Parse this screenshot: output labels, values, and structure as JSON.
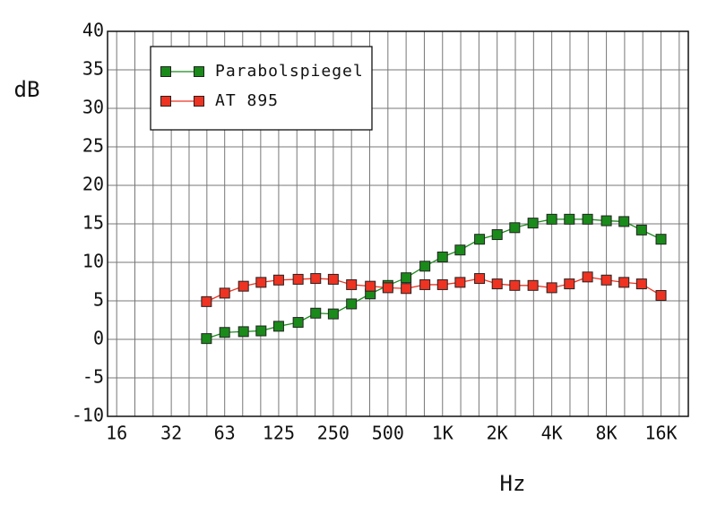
{
  "chart_data": {
    "type": "line",
    "x_label": "Hz",
    "y_label": "dB",
    "x": [
      50,
      63,
      80,
      100,
      125,
      160,
      200,
      250,
      315,
      400,
      500,
      630,
      800,
      1000,
      1250,
      1600,
      2000,
      2500,
      3150,
      4000,
      5000,
      6300,
      8000,
      10000,
      12500,
      16000
    ],
    "series": [
      {
        "name": "Parabolspiegel",
        "color": "#1a8a1a",
        "values": [
          0.1,
          0.9,
          1.0,
          1.1,
          1.7,
          2.2,
          3.4,
          3.3,
          4.6,
          5.9,
          7.0,
          8.0,
          9.5,
          10.7,
          11.6,
          13.0,
          13.6,
          14.5,
          15.1,
          15.6,
          15.6,
          15.6,
          15.4,
          15.3,
          14.2,
          13.0
        ]
      },
      {
        "name": "AT 895",
        "color": "#ee3322",
        "values": [
          4.9,
          6.0,
          6.9,
          7.4,
          7.7,
          7.8,
          7.9,
          7.8,
          7.1,
          6.9,
          6.7,
          6.6,
          7.1,
          7.1,
          7.4,
          7.9,
          7.2,
          7.0,
          7.0,
          6.7,
          7.2,
          8.1,
          7.7,
          7.4,
          7.2,
          5.7
        ]
      }
    ],
    "xscale": "log",
    "xlim": [
      14.25,
      22627
    ],
    "xticks": [
      16,
      32,
      63,
      125,
      250,
      500,
      {
        "value": 1000,
        "label": "1K"
      },
      {
        "value": 2000,
        "label": "2K"
      },
      {
        "value": 4000,
        "label": "4K"
      },
      {
        "value": 8000,
        "label": "8K"
      },
      {
        "value": 16000,
        "label": "16K"
      }
    ],
    "ylim": [
      -10,
      40
    ],
    "yticks": [
      -10,
      -5,
      0,
      5,
      10,
      15,
      20,
      25,
      30,
      35,
      40
    ],
    "grid": true,
    "legend": "upper left"
  }
}
